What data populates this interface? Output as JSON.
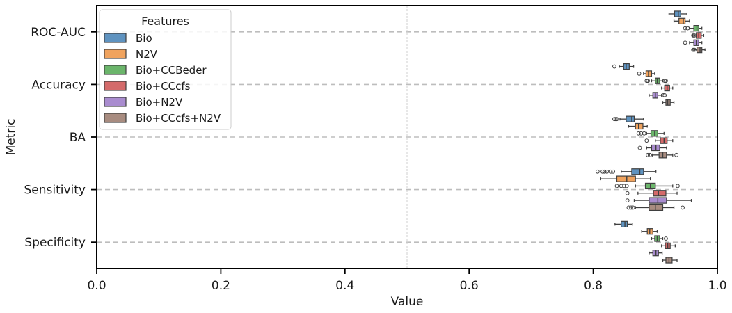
{
  "chart_data": {
    "type": "boxplot",
    "orientation": "horizontal",
    "xlabel": "Value",
    "ylabel": "Metric",
    "xlim": [
      0.0,
      1.0
    ],
    "xticks": [
      "0.0",
      "0.2",
      "0.4",
      "0.6",
      "0.8",
      "1.0"
    ],
    "reference_line_x": 0.5,
    "grid": "horizontal dashed at categories",
    "legend": {
      "title": "Features",
      "placement": "top-left"
    },
    "categories": [
      "ROC-AUC",
      "Accuracy",
      "BA",
      "Sensitivity",
      "Specificity"
    ],
    "series": [
      {
        "name": "Bio",
        "color": "#5f93c0",
        "boxes": [
          {
            "whislo": 0.922,
            "q1": 0.931,
            "med": 0.937,
            "q3": 0.941,
            "whishi": 0.951,
            "fliers": []
          },
          {
            "whislo": 0.842,
            "q1": 0.849,
            "med": 0.853,
            "q3": 0.858,
            "whishi": 0.865,
            "fliers": [
              0.834
            ]
          },
          {
            "whislo": 0.843,
            "q1": 0.853,
            "med": 0.862,
            "q3": 0.866,
            "whishi": 0.881,
            "fliers": [
              0.834,
              0.836,
              0.838
            ]
          },
          {
            "whislo": 0.845,
            "q1": 0.862,
            "med": 0.875,
            "q3": 0.881,
            "whishi": 0.901,
            "fliers": [
              0.807,
              0.815,
              0.818,
              0.822,
              0.828,
              0.832
            ]
          },
          {
            "whislo": 0.835,
            "q1": 0.845,
            "med": 0.851,
            "q3": 0.855,
            "whishi": 0.863,
            "fliers": []
          }
        ]
      },
      {
        "name": "N2V",
        "color": "#f0a35e",
        "boxes": [
          {
            "whislo": 0.93,
            "q1": 0.938,
            "med": 0.945,
            "q3": 0.948,
            "whishi": 0.955,
            "fliers": []
          },
          {
            "whislo": 0.881,
            "q1": 0.885,
            "med": 0.889,
            "q3": 0.894,
            "whishi": 0.899,
            "fliers": [
              0.874
            ]
          },
          {
            "whislo": 0.857,
            "q1": 0.868,
            "med": 0.873,
            "q3": 0.88,
            "whishi": 0.887,
            "fliers": []
          },
          {
            "whislo": 0.812,
            "q1": 0.838,
            "med": 0.854,
            "q3": 0.868,
            "whishi": 0.892,
            "fliers": []
          },
          {
            "whislo": 0.878,
            "q1": 0.887,
            "med": 0.891,
            "q3": 0.896,
            "whishi": 0.903,
            "fliers": []
          }
        ]
      },
      {
        "name": "Bio+CCBeder",
        "color": "#6bb56b",
        "boxes": [
          {
            "whislo": 0.955,
            "q1": 0.962,
            "med": 0.967,
            "q3": 0.97,
            "whishi": 0.975,
            "fliers": [
              0.948,
              0.952
            ]
          },
          {
            "whislo": 0.894,
            "q1": 0.9,
            "med": 0.903,
            "q3": 0.907,
            "whishi": 0.912,
            "fliers": [
              0.886,
              0.888,
              0.915,
              0.917
            ]
          },
          {
            "whislo": 0.886,
            "q1": 0.893,
            "med": 0.899,
            "q3": 0.904,
            "whishi": 0.914,
            "fliers": [
              0.873,
              0.877,
              0.882
            ]
          },
          {
            "whislo": 0.868,
            "q1": 0.884,
            "med": 0.892,
            "q3": 0.9,
            "whishi": 0.928,
            "fliers": [
              0.838,
              0.845,
              0.85,
              0.854,
              0.936
            ]
          },
          {
            "whislo": 0.894,
            "q1": 0.899,
            "med": 0.903,
            "q3": 0.907,
            "whishi": 0.912,
            "fliers": [
              0.917
            ]
          }
        ]
      },
      {
        "name": "Bio+CCcfs",
        "color": "#d46a6a",
        "boxes": [
          {
            "whislo": 0.96,
            "q1": 0.966,
            "med": 0.97,
            "q3": 0.974,
            "whishi": 0.978,
            "fliers": [
              0.961,
              0.963
            ]
          },
          {
            "whislo": 0.91,
            "q1": 0.915,
            "med": 0.919,
            "q3": 0.923,
            "whishi": 0.928,
            "fliers": []
          },
          {
            "whislo": 0.9,
            "q1": 0.908,
            "med": 0.914,
            "q3": 0.919,
            "whishi": 0.928,
            "fliers": [
              0.886
            ]
          },
          {
            "whislo": 0.872,
            "q1": 0.897,
            "med": 0.905,
            "q3": 0.917,
            "whishi": 0.935,
            "fliers": [
              0.855
            ]
          },
          {
            "whislo": 0.91,
            "q1": 0.916,
            "med": 0.92,
            "q3": 0.924,
            "whishi": 0.932,
            "fliers": []
          }
        ]
      },
      {
        "name": "Bio+N2V",
        "color": "#a98ccf",
        "boxes": [
          {
            "whislo": 0.955,
            "q1": 0.962,
            "med": 0.966,
            "q3": 0.97,
            "whishi": 0.975,
            "fliers": [
              0.948
            ]
          },
          {
            "whislo": 0.89,
            "q1": 0.896,
            "med": 0.9,
            "q3": 0.904,
            "whishi": 0.91,
            "fliers": [
              0.913,
              0.915
            ]
          },
          {
            "whislo": 0.886,
            "q1": 0.894,
            "med": 0.901,
            "q3": 0.907,
            "whishi": 0.918,
            "fliers": [
              0.875
            ]
          },
          {
            "whislo": 0.866,
            "q1": 0.89,
            "med": 0.904,
            "q3": 0.918,
            "whishi": 0.958,
            "fliers": [
              0.855
            ]
          },
          {
            "whislo": 0.89,
            "q1": 0.896,
            "med": 0.901,
            "q3": 0.905,
            "whishi": 0.911,
            "fliers": []
          }
        ]
      },
      {
        "name": "Bio+CCcfs+N2V",
        "color": "#a88c80",
        "boxes": [
          {
            "whislo": 0.962,
            "q1": 0.967,
            "med": 0.972,
            "q3": 0.975,
            "whishi": 0.98,
            "fliers": [
              0.961,
              0.963
            ]
          },
          {
            "whislo": 0.912,
            "q1": 0.917,
            "med": 0.92,
            "q3": 0.924,
            "whishi": 0.93,
            "fliers": []
          },
          {
            "whislo": 0.895,
            "q1": 0.906,
            "med": 0.912,
            "q3": 0.918,
            "whishi": 0.928,
            "fliers": [
              0.888,
              0.891,
              0.934
            ]
          },
          {
            "whislo": 0.868,
            "q1": 0.89,
            "med": 0.9,
            "q3": 0.912,
            "whishi": 0.93,
            "fliers": [
              0.857,
              0.861,
              0.864,
              0.944
            ]
          },
          {
            "whislo": 0.912,
            "q1": 0.917,
            "med": 0.922,
            "q3": 0.927,
            "whishi": 0.935,
            "fliers": []
          }
        ]
      }
    ]
  }
}
